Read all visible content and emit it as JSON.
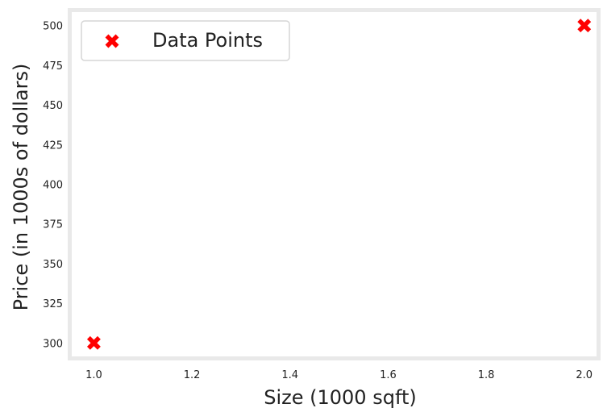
{
  "chart_data": {
    "type": "scatter",
    "title": "",
    "xlabel": "Size (1000 sqft)",
    "ylabel": "Price (in 1000s of dollars)",
    "xlim": [
      0.95,
      2.03
    ],
    "ylim": [
      290,
      510
    ],
    "xticks": [
      1.0,
      1.2,
      1.4,
      1.6,
      1.8,
      2.0
    ],
    "xtick_labels": [
      "1.0",
      "1.2",
      "1.4",
      "1.6",
      "1.8",
      "2.0"
    ],
    "yticks": [
      300,
      325,
      350,
      375,
      400,
      425,
      450,
      475,
      500
    ],
    "ytick_labels": [
      "300",
      "325",
      "350",
      "375",
      "400",
      "425",
      "450",
      "475",
      "500"
    ],
    "grid": false,
    "legend_position": "top-left",
    "series": [
      {
        "name": "Data Points",
        "marker": "x",
        "color": "#ff0000",
        "x": [
          1.0,
          2.0
        ],
        "y": [
          300,
          500
        ]
      }
    ]
  }
}
